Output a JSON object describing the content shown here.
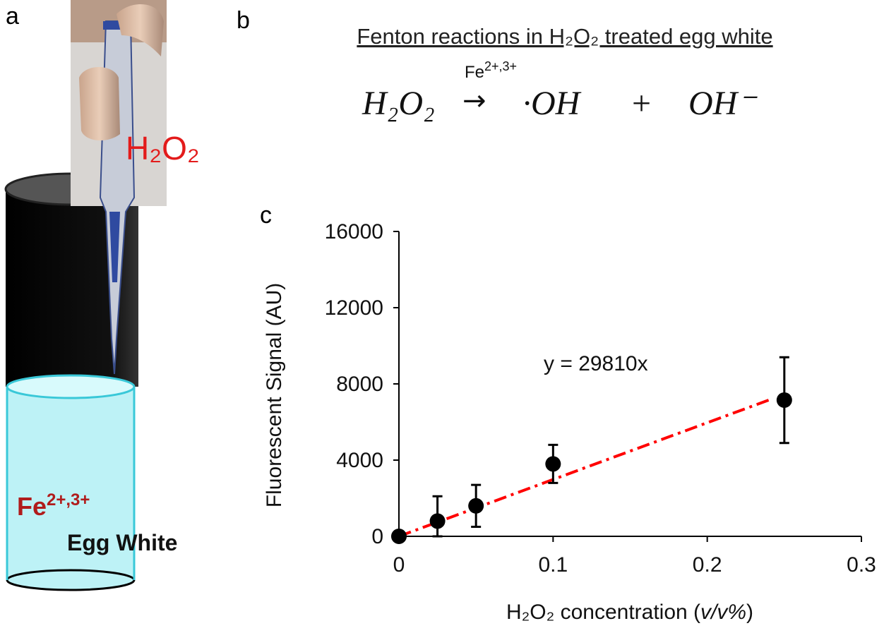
{
  "panel_labels": [
    "a",
    "b",
    "c"
  ],
  "illustration": {
    "reagent": "H₂O₂",
    "iron": {
      "base": "Fe",
      "sup": "2+,3+"
    },
    "sample": "Egg White"
  },
  "reaction": {
    "heading": "Fenton reactions in H₂O₂ treated egg white",
    "reactant": "H₂O₂",
    "arrow": "→",
    "catalyst": {
      "base": "Fe",
      "sup": "2+,3+"
    },
    "product_1": "·OH",
    "plus": "+",
    "product_2": "OH⁻"
  },
  "chart_data": {
    "type": "scatter",
    "xlabel": [
      "H₂O₂ concentration (",
      "v/v%",
      ")"
    ],
    "ylabel": "Fluorescent Signal (AU)",
    "x": [
      0,
      0.025,
      0.05,
      0.1,
      0.25
    ],
    "series": [
      {
        "color": "#000000",
        "values": [
          0,
          800,
          1600,
          3800,
          7150
        ],
        "errors": [
          0,
          1300,
          1100,
          1000,
          2250
        ]
      }
    ],
    "trendline": {
      "label": "y = 29810x",
      "slope": 29810,
      "x_range": [
        0,
        0.24
      ],
      "color": "#ff0000"
    },
    "xlim": [
      0,
      0.3
    ],
    "xticks": [
      0,
      0.1,
      0.2,
      0.3
    ],
    "ylim": [
      0,
      16000
    ],
    "yticks": [
      0,
      4000,
      8000,
      12000,
      16000
    ]
  }
}
